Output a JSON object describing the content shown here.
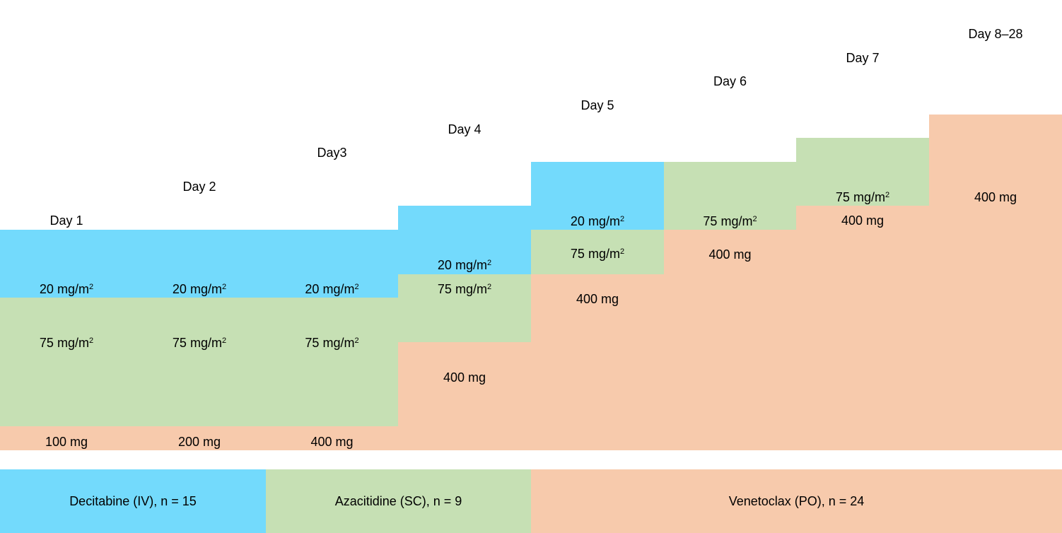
{
  "colors": {
    "decitabine": "#73dafc",
    "azacitidine": "#c6e0b4",
    "venetoclax": "#f7caac"
  },
  "days": [
    "Day 1",
    "Day 2",
    "Day3",
    "Day 4",
    "Day 5",
    "Day 6",
    "Day 7",
    "Day 8–28"
  ],
  "dose_units": {
    "mg_m2": "mg/m",
    "sq": "2"
  },
  "decitabine_doses": [
    "20",
    "20",
    "20",
    "20",
    "20",
    "",
    "",
    ""
  ],
  "azacitidine_doses": [
    "75",
    "75",
    "75",
    "75",
    "75",
    "75",
    "75",
    ""
  ],
  "venetoclax_doses": [
    "100 mg",
    "200 mg",
    "400 mg",
    "400 mg",
    "400 mg",
    "400 mg",
    "400 mg",
    "400 mg"
  ],
  "legend": {
    "decitabine": "Decitabine (IV), n = 15",
    "azacitidine": "Azacitidine (SC), n = 9",
    "venetoclax": "Venetoclax (PO), n = 24"
  }
}
